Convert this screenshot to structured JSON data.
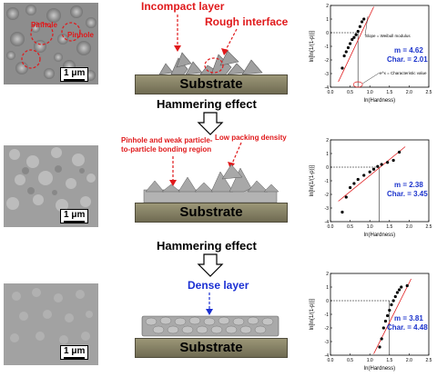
{
  "rows": [
    {
      "scale_bar": "1 μm",
      "sem_labels": [
        "Pinhole",
        "Pinhole"
      ],
      "substrate": "Substrate",
      "annotations": [
        "Incompact layer",
        "Rough interface"
      ],
      "plot": {
        "m_label": "m",
        "m_value": "= 4.62",
        "char_label": "Char.",
        "char_value": "= 2.01",
        "slope_note": "Slope = Weibull modulus",
        "char_note": "e^x = Characteristic value"
      }
    },
    {
      "scale_bar": "1 μm",
      "substrate": "Substrate",
      "annotations": [
        "Pinhole and weak particle-to-particle bonding region",
        "Low packing density"
      ],
      "plot": {
        "m_label": "m",
        "m_value": "= 2.38",
        "char_label": "Char.",
        "char_value": "= 3.45"
      }
    },
    {
      "scale_bar": "1 μm",
      "substrate": "Substrate",
      "annotations": [
        "Dense layer"
      ],
      "plot": {
        "m_label": "m",
        "m_value": "= 3.81",
        "char_label": "Char.",
        "char_value": "= 4.48"
      }
    }
  ],
  "hammer_label": "Hammering effect",
  "axes": {
    "xlabel": "ln(Hardness)",
    "ylabel": "ln[ln{1/(1-p)}]",
    "xticks": [
      "0.0",
      "0.5",
      "1.0",
      "1.5",
      "2.0",
      "2.5"
    ],
    "yticks": [
      "2",
      "1",
      "0",
      "-1",
      "-2",
      "-3",
      "-4"
    ]
  },
  "colors": {
    "red": "#e0191b",
    "blue": "#1a2fd3",
    "substrate": "#8f8a70"
  },
  "chart_data": [
    {
      "type": "scatter",
      "xlabel": "ln(Hardness)",
      "ylabel": "ln[ln{1/(1-p)}]",
      "xlim": [
        0,
        2.5
      ],
      "ylim": [
        -4,
        2
      ],
      "points": [
        [
          0.3,
          -2.6
        ],
        [
          0.35,
          -1.7
        ],
        [
          0.4,
          -1.4
        ],
        [
          0.45,
          -1.1
        ],
        [
          0.5,
          -0.8
        ],
        [
          0.55,
          -0.5
        ],
        [
          0.6,
          -0.35
        ],
        [
          0.65,
          -0.15
        ],
        [
          0.7,
          0.1
        ],
        [
          0.75,
          0.45
        ],
        [
          0.8,
          0.8
        ],
        [
          0.85,
          1.0
        ]
      ],
      "fit": [
        [
          0.2,
          -3.6
        ],
        [
          1.1,
          1.9
        ]
      ],
      "m": 4.62,
      "char": 2.01
    },
    {
      "type": "scatter",
      "xlabel": "ln(Hardness)",
      "ylabel": "ln[ln{1/(1-p)}]",
      "xlim": [
        0,
        2.5
      ],
      "ylim": [
        -4,
        2
      ],
      "points": [
        [
          0.3,
          -3.3
        ],
        [
          0.4,
          -2.2
        ],
        [
          0.5,
          -1.5
        ],
        [
          0.6,
          -1.2
        ],
        [
          0.7,
          -0.9
        ],
        [
          0.85,
          -0.6
        ],
        [
          1.0,
          -0.35
        ],
        [
          1.1,
          -0.15
        ],
        [
          1.2,
          0.05
        ],
        [
          1.3,
          0.2
        ],
        [
          1.45,
          0.35
        ],
        [
          1.6,
          0.5
        ],
        [
          1.75,
          1.1
        ]
      ],
      "fit": [
        [
          0.2,
          -2.5
        ],
        [
          1.9,
          1.5
        ]
      ],
      "m": 2.38,
      "char": 3.45
    },
    {
      "type": "scatter",
      "xlabel": "ln(Hardness)",
      "ylabel": "ln[ln{1/(1-p)}]",
      "xlim": [
        0,
        2.5
      ],
      "ylim": [
        -4,
        2
      ],
      "points": [
        [
          1.25,
          -3.4
        ],
        [
          1.3,
          -2.8
        ],
        [
          1.35,
          -2.0
        ],
        [
          1.4,
          -1.5
        ],
        [
          1.45,
          -1.1
        ],
        [
          1.5,
          -0.7
        ],
        [
          1.55,
          -0.3
        ],
        [
          1.6,
          0.0
        ],
        [
          1.65,
          0.3
        ],
        [
          1.7,
          0.6
        ],
        [
          1.75,
          0.8
        ],
        [
          1.8,
          1.0
        ],
        [
          1.95,
          1.1
        ]
      ],
      "fit": [
        [
          1.1,
          -3.9
        ],
        [
          2.05,
          1.6
        ]
      ],
      "m": 3.81,
      "char": 4.48
    }
  ]
}
